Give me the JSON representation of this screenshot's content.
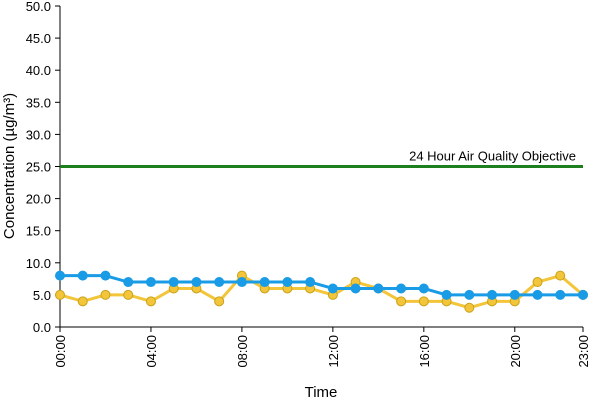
{
  "chart_data": {
    "type": "line",
    "title": "",
    "xlabel": "Time",
    "ylabel": "Concentration (µg/m³)",
    "ylim": [
      0,
      50
    ],
    "y_ticks": [
      "0.0",
      "5.0",
      "10.0",
      "15.0",
      "20.0",
      "25.0",
      "30.0",
      "35.0",
      "40.0",
      "45.0",
      "50.0"
    ],
    "x": [
      0,
      1,
      2,
      3,
      4,
      5,
      6,
      7,
      8,
      9,
      10,
      11,
      12,
      13,
      14,
      15,
      16,
      17,
      18,
      19,
      20,
      21,
      22,
      23
    ],
    "x_ticks": [
      "00:00",
      "04:00",
      "08:00",
      "12:00",
      "16:00",
      "20:00",
      "23:00"
    ],
    "x_tick_hours": [
      0,
      4,
      8,
      12,
      16,
      20,
      23
    ],
    "grid": false,
    "objective": {
      "label": "24 Hour Air Quality Objective",
      "value": 25,
      "color": "#1e7f1e"
    },
    "series": [
      {
        "color": "#f2c53a",
        "edge": "#c9a21a",
        "values": [
          5,
          4,
          5,
          5,
          4,
          6,
          6,
          4,
          8,
          6,
          6,
          6,
          5,
          7,
          6,
          4,
          4,
          4,
          3,
          4,
          4,
          7,
          8,
          5
        ]
      },
      {
        "color": "#1a9be6",
        "edge": "#1a9be6",
        "values": [
          8,
          8,
          8,
          7,
          7,
          7,
          7,
          7,
          7,
          7,
          7,
          7,
          6,
          6,
          6,
          6,
          6,
          5,
          5,
          5,
          5,
          5,
          5,
          5
        ]
      }
    ]
  }
}
